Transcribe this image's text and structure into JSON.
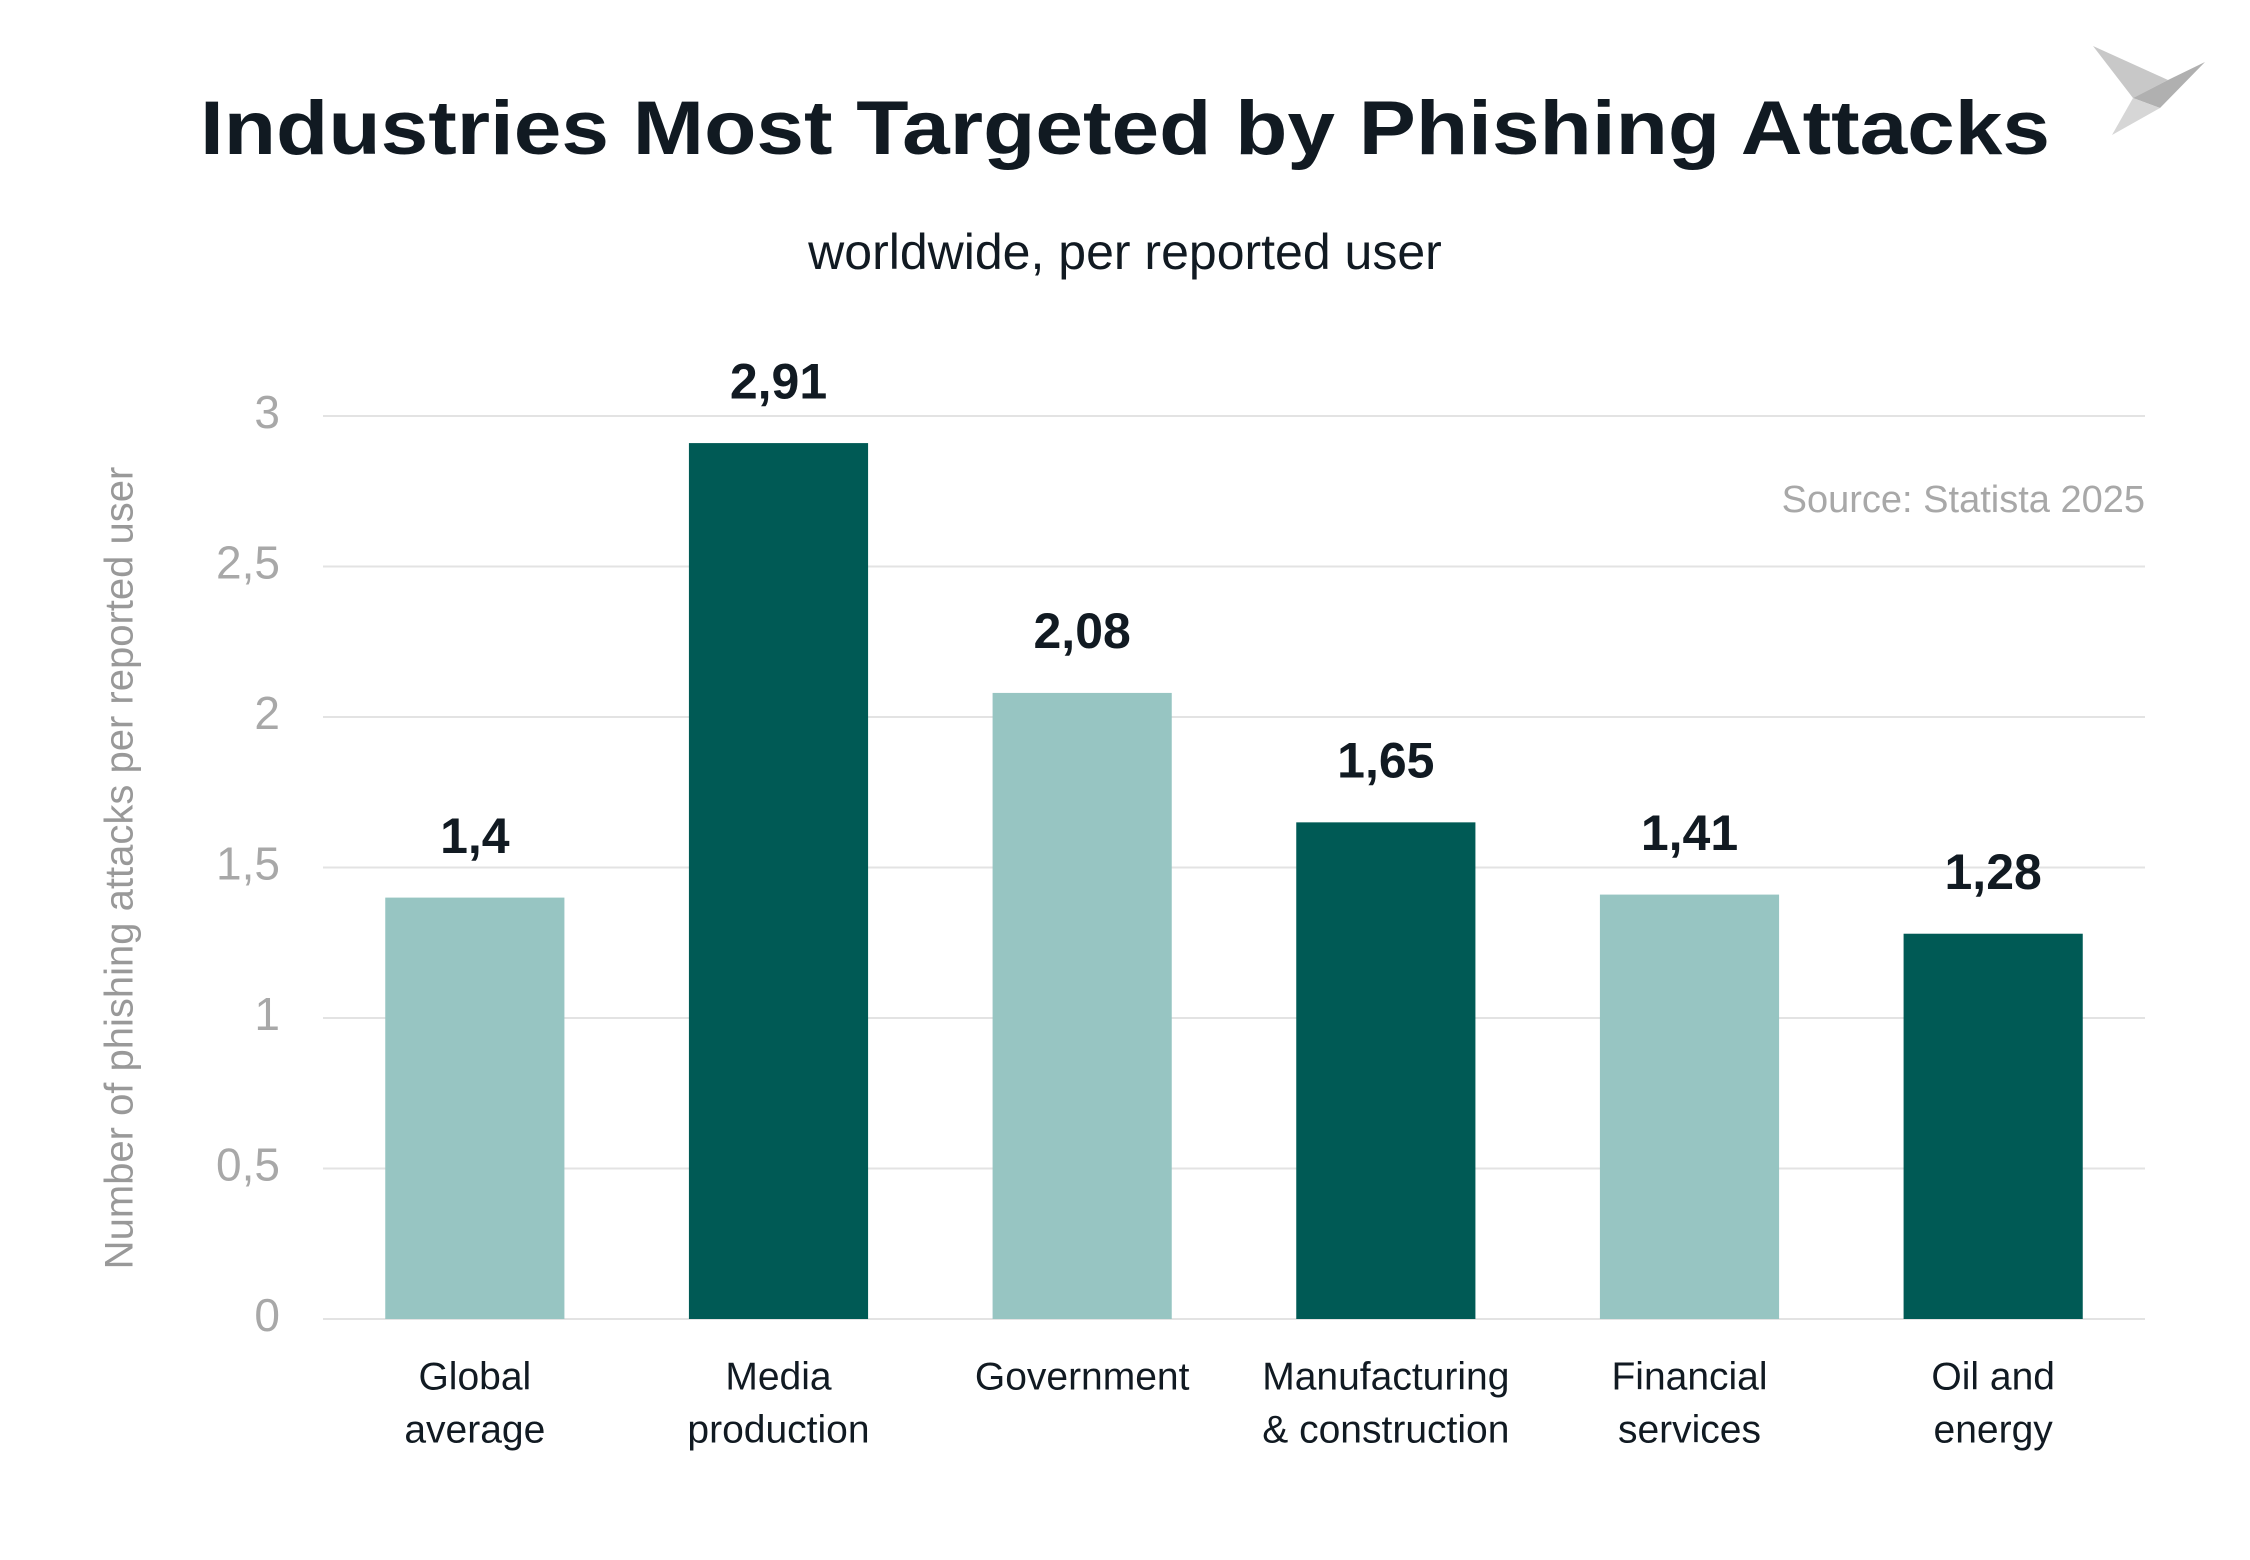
{
  "chart_data": {
    "type": "bar",
    "title": "Industries Most Targeted by Phishing Attacks",
    "subtitle": "worldwide, per reported user",
    "y_label": "Number of phishing attacks per reported user",
    "source": "Source: Statista 2025",
    "categories": [
      [
        "Global",
        "average"
      ],
      [
        "Media",
        "production"
      ],
      [
        "Government"
      ],
      [
        "Manufacturing",
        "& construction"
      ],
      [
        "Financial",
        "services"
      ],
      [
        "Oil and",
        "energy"
      ]
    ],
    "values": [
      1.4,
      2.91,
      2.08,
      1.65,
      1.41,
      1.28
    ],
    "value_labels": [
      "1,4",
      "2,91",
      "2,08",
      "1,65",
      "1,41",
      "1,28"
    ],
    "colors": [
      "#97c5c2",
      "#005a55",
      "#97c5c2",
      "#005a55",
      "#97c5c2",
      "#005a55"
    ],
    "ylim": [
      0,
      3
    ],
    "yticks": [
      0,
      {
        "value": 0.5,
        "label": "0,5"
      },
      1,
      {
        "value": 1.5,
        "label": "1,5"
      },
      2,
      {
        "value": 2.5,
        "label": "2,5"
      },
      3
    ],
    "grid": true
  }
}
